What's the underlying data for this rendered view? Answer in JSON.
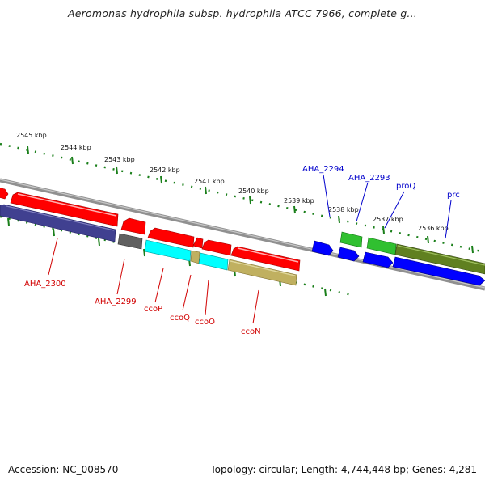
{
  "title": "Aeromonas hydrophila subsp. hydrophila ATCC 7966, complete g...",
  "footer": {
    "accession": "Accession: NC_008570",
    "summary": "Topology: circular; Length: 4,744,448 bp; Genes: 4,281"
  },
  "ticks": [
    "2545 kbp",
    "2544 kbp",
    "2543 kbp",
    "2542 kbp",
    "2541 kbp",
    "2540 kbp",
    "2539 kbp",
    "2538 kbp",
    "2537 kbp",
    "2536 kbp"
  ],
  "gene_labels": {
    "aha_2300": "AHA_2300",
    "aha_2299": "AHA_2299",
    "ccop": "ccoP",
    "ccoq": "ccoQ",
    "ccoo": "ccoO",
    "ccon": "ccoN",
    "aha_2294": "AHA_2294",
    "aha_2293": "AHA_2293",
    "proq": "proQ",
    "prc": "prc"
  },
  "colors": {
    "red": "#ff0000",
    "blue": "#0000ff",
    "navy": "#404090",
    "gray": "#606060",
    "cyan": "#00ffff",
    "khaki": "#c0b060",
    "green": "#30c030",
    "olive": "#608020",
    "tick_green": "#1a7f1a",
    "backbone": "#808080"
  }
}
